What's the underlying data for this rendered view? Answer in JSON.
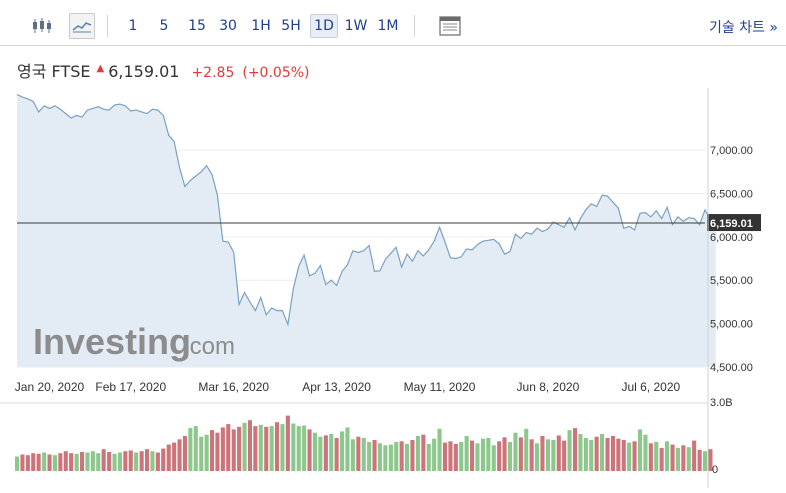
{
  "toolbar": {
    "timeframes": [
      "1",
      "5",
      "15",
      "30",
      "1H",
      "5H",
      "1D",
      "1W",
      "1M"
    ],
    "active_timeframe": "1D",
    "chart_link": "기술 차트 »"
  },
  "quote": {
    "name": "영국 FTSE",
    "price": "6,159.01",
    "change": "+2.85",
    "change_pct": "(+0.05%)"
  },
  "watermark": {
    "brand": "Investing",
    "suffix": ".com"
  },
  "colors": {
    "line": "#7aa1c2",
    "area": "#e3ecf4",
    "up": "#8cc78c",
    "down": "#cc7479",
    "accent": "#1f3f8f",
    "red": "#e53a3a"
  },
  "chart_data": {
    "type": "area",
    "xlabel": "",
    "ylabel": "",
    "x_range": [
      0,
      127
    ],
    "ylim": [
      4500,
      7600
    ],
    "y_ticks": [
      7000,
      6500,
      6000,
      5500,
      5000,
      4500
    ],
    "y_tick_labels": [
      "7,000.00",
      "6,500.00",
      "6,000.00",
      "5,500.00",
      "5,000.00",
      "4,500.00"
    ],
    "x_tick_labels": [
      {
        "x": 6,
        "label": "Jan 20, 2020"
      },
      {
        "x": 21,
        "label": "Feb 17, 2020"
      },
      {
        "x": 40,
        "label": "Mar 16, 2020"
      },
      {
        "x": 59,
        "label": "Apr 13, 2020"
      },
      {
        "x": 78,
        "label": "May 11, 2020"
      },
      {
        "x": 98,
        "label": "Jun 8, 2020"
      },
      {
        "x": 117,
        "label": "Jul 6, 2020"
      }
    ],
    "current_value": 6159.01,
    "current_label": "6,159.01",
    "series": [
      {
        "values": [
          7640,
          7610,
          7590,
          7560,
          7440,
          7510,
          7480,
          7510,
          7470,
          7420,
          7370,
          7400,
          7380,
          7460,
          7480,
          7500,
          7470,
          7460,
          7520,
          7530,
          7510,
          7450,
          7460,
          7440,
          7420,
          7470,
          7460,
          7400,
          7170,
          7100,
          6800,
          6580,
          6650,
          6700,
          6750,
          6820,
          6720,
          6480,
          5950,
          5940,
          5820,
          5220,
          5360,
          5250,
          5150,
          5300,
          5100,
          5180,
          5150,
          5150,
          4990,
          5400,
          5660,
          5790,
          5550,
          5580,
          5670,
          5450,
          5500,
          5440,
          5600,
          5680,
          5840,
          5820,
          5840,
          5900,
          5600,
          5610,
          5740,
          5810,
          5880,
          5650,
          5800,
          5720,
          5840,
          5780,
          5850,
          5950,
          6110,
          5940,
          5760,
          5750,
          5770,
          5860,
          5850,
          5910,
          5950,
          5960,
          5970,
          5920,
          5800,
          5830,
          6030,
          5980,
          6050,
          6030,
          6100,
          6060,
          6090,
          6170,
          6140,
          6110,
          6220,
          6080,
          6210,
          6310,
          6380,
          6350,
          6480,
          6470,
          6400,
          6330,
          6100,
          6120,
          6080,
          6270,
          6280,
          6230,
          6300,
          6210,
          6340,
          6140,
          6230,
          6180,
          6220,
          6210,
          6140,
          6310,
          6200,
          6159
        ]
      }
    ],
    "volume": {
      "ylim_labels": [
        "3.0B",
        "0"
      ],
      "values": [
        0.22,
        0.25,
        0.24,
        0.27,
        0.26,
        0.28,
        0.25,
        0.24,
        0.27,
        0.3,
        0.27,
        0.26,
        0.29,
        0.28,
        0.3,
        0.27,
        0.33,
        0.29,
        0.26,
        0.28,
        0.3,
        0.31,
        0.28,
        0.3,
        0.33,
        0.3,
        0.28,
        0.34,
        0.4,
        0.43,
        0.48,
        0.53,
        0.65,
        0.68,
        0.52,
        0.55,
        0.62,
        0.58,
        0.66,
        0.71,
        0.63,
        0.67,
        0.73,
        0.77,
        0.68,
        0.7,
        0.67,
        0.68,
        0.74,
        0.71,
        0.84,
        0.72,
        0.68,
        0.69,
        0.63,
        0.58,
        0.52,
        0.54,
        0.56,
        0.5,
        0.6,
        0.66,
        0.48,
        0.52,
        0.5,
        0.44,
        0.47,
        0.42,
        0.39,
        0.4,
        0.44,
        0.45,
        0.41,
        0.47,
        0.53,
        0.55,
        0.41,
        0.49,
        0.64,
        0.43,
        0.45,
        0.41,
        0.44,
        0.53,
        0.46,
        0.42,
        0.49,
        0.5,
        0.39,
        0.45,
        0.51,
        0.44,
        0.58,
        0.51,
        0.64,
        0.48,
        0.42,
        0.53,
        0.48,
        0.47,
        0.54,
        0.46,
        0.62,
        0.65,
        0.56,
        0.5,
        0.47,
        0.52,
        0.56,
        0.5,
        0.53,
        0.49,
        0.47,
        0.43,
        0.45,
        0.63,
        0.55,
        0.42,
        0.44,
        0.35,
        0.45,
        0.4,
        0.35,
        0.39,
        0.36,
        0.46,
        0.32,
        0.3,
        0.33
      ]
    }
  }
}
